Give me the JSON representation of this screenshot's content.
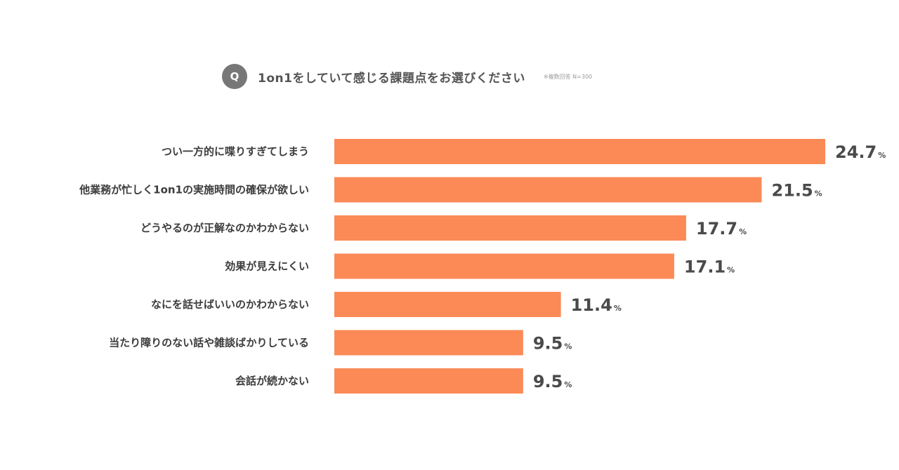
{
  "question": {
    "badge": "Q",
    "title": "1on1をしていて感じる課題点をお選びください",
    "note": "※複数回答  N=300"
  },
  "colors": {
    "bar": "#fb8a57",
    "badge": "#777777",
    "text": "#3c3c3c"
  },
  "chart_data": {
    "type": "bar",
    "orientation": "horizontal",
    "categories": [
      "つい一方的に喋りすぎてしまう",
      "他業務が忙しく1on1の実施時間の確保が欲しい",
      "どうやるのが正解なのかわからない",
      "効果が見えにくい",
      "なにを話せばいいのかわからない",
      "当たり障りのない話や雑談ばかりしている",
      "会話が続かない"
    ],
    "values": [
      24.7,
      21.5,
      17.7,
      17.1,
      11.4,
      9.5,
      9.5
    ],
    "value_labels": [
      "24.7",
      "21.5",
      "17.7",
      "17.1",
      "11.4",
      "9.5",
      "9.5"
    ],
    "unit": "%",
    "title": "1on1をしていて感じる課題点をお選びください",
    "xlabel": "",
    "ylabel": "",
    "grid": false,
    "legend": "none"
  }
}
